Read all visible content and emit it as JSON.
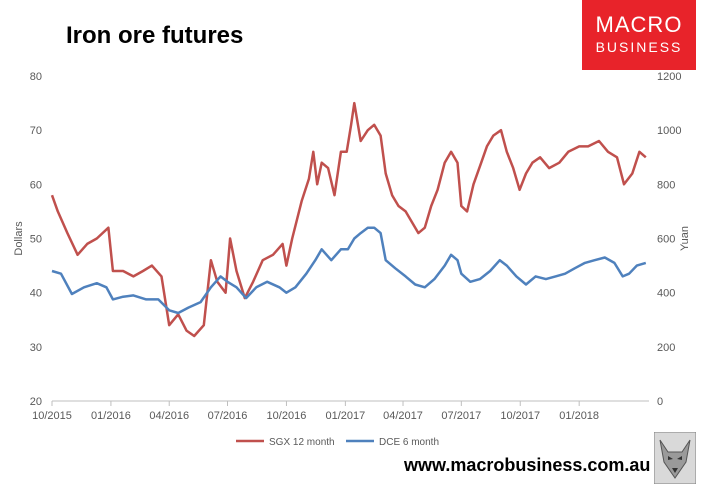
{
  "chart_data": {
    "type": "line",
    "title": "Iron ore futures",
    "x_ticks": [
      "10/2015",
      "01/2016",
      "04/2016",
      "07/2016",
      "10/2016",
      "01/2017",
      "04/2017",
      "07/2017",
      "10/2017",
      "01/2018"
    ],
    "ylabel": "Dollars",
    "y2label": "Yuan",
    "ylim": [
      20,
      80
    ],
    "y2lim": [
      0,
      1200
    ],
    "y_ticks": [
      20,
      30,
      40,
      50,
      60,
      70,
      80
    ],
    "y2_ticks": [
      0,
      200,
      400,
      600,
      800,
      1000,
      1200
    ],
    "grid": false,
    "legend_position": "bottom",
    "series": [
      {
        "name": "SGX 12 month",
        "axis": "left",
        "color": "#c0504d",
        "points": [
          [
            "2015-10-01",
            58
          ],
          [
            "2015-10-10",
            55
          ],
          [
            "2015-10-25",
            51
          ],
          [
            "2015-11-10",
            47
          ],
          [
            "2015-11-25",
            49
          ],
          [
            "2015-12-10",
            50
          ],
          [
            "2015-12-28",
            52
          ],
          [
            "2016-01-04",
            44
          ],
          [
            "2016-01-20",
            44
          ],
          [
            "2016-02-05",
            43
          ],
          [
            "2016-02-20",
            44
          ],
          [
            "2016-03-05",
            45
          ],
          [
            "2016-03-20",
            43
          ],
          [
            "2016-04-01",
            34
          ],
          [
            "2016-04-15",
            36
          ],
          [
            "2016-04-28",
            33
          ],
          [
            "2016-05-10",
            32
          ],
          [
            "2016-05-25",
            34
          ],
          [
            "2016-06-05",
            46
          ],
          [
            "2016-06-15",
            42
          ],
          [
            "2016-06-28",
            40
          ],
          [
            "2016-07-05",
            50
          ],
          [
            "2016-07-15",
            44
          ],
          [
            "2016-07-28",
            39
          ],
          [
            "2016-08-10",
            42
          ],
          [
            "2016-08-25",
            46
          ],
          [
            "2016-09-10",
            47
          ],
          [
            "2016-09-25",
            49
          ],
          [
            "2016-10-01",
            45
          ],
          [
            "2016-10-10",
            50
          ],
          [
            "2016-10-25",
            57
          ],
          [
            "2016-11-05",
            61
          ],
          [
            "2016-11-12",
            66
          ],
          [
            "2016-11-18",
            60
          ],
          [
            "2016-11-25",
            64
          ],
          [
            "2016-12-05",
            63
          ],
          [
            "2016-12-15",
            58
          ],
          [
            "2016-12-25",
            66
          ],
          [
            "2017-01-03",
            66
          ],
          [
            "2017-01-10",
            71
          ],
          [
            "2017-01-15",
            75
          ],
          [
            "2017-01-25",
            68
          ],
          [
            "2017-02-05",
            70
          ],
          [
            "2017-02-15",
            71
          ],
          [
            "2017-02-25",
            69
          ],
          [
            "2017-03-05",
            62
          ],
          [
            "2017-03-15",
            58
          ],
          [
            "2017-03-25",
            56
          ],
          [
            "2017-04-05",
            55
          ],
          [
            "2017-04-15",
            53
          ],
          [
            "2017-04-25",
            51
          ],
          [
            "2017-05-05",
            52
          ],
          [
            "2017-05-15",
            56
          ],
          [
            "2017-05-25",
            59
          ],
          [
            "2017-06-05",
            64
          ],
          [
            "2017-06-15",
            66
          ],
          [
            "2017-06-25",
            64
          ],
          [
            "2017-07-01",
            56
          ],
          [
            "2017-07-10",
            55
          ],
          [
            "2017-07-20",
            60
          ],
          [
            "2017-08-01",
            64
          ],
          [
            "2017-08-10",
            67
          ],
          [
            "2017-08-20",
            69
          ],
          [
            "2017-09-01",
            70
          ],
          [
            "2017-09-10",
            66
          ],
          [
            "2017-09-20",
            63
          ],
          [
            "2017-09-30",
            59
          ],
          [
            "2017-10-10",
            62
          ],
          [
            "2017-10-20",
            64
          ],
          [
            "2017-11-01",
            65
          ],
          [
            "2017-11-15",
            63
          ],
          [
            "2017-12-01",
            64
          ],
          [
            "2017-12-15",
            66
          ],
          [
            "2018-01-01",
            67
          ],
          [
            "2018-01-15",
            67
          ],
          [
            "2018-02-01",
            68
          ],
          [
            "2018-02-15",
            66
          ],
          [
            "2018-03-01",
            65
          ],
          [
            "2018-03-12",
            60
          ],
          [
            "2018-03-25",
            62
          ],
          [
            "2018-04-05",
            66
          ],
          [
            "2018-04-15",
            65
          ]
        ]
      },
      {
        "name": "DCE 6 month",
        "axis": "right",
        "color": "#4f81bd",
        "points": [
          [
            "2015-10-01",
            480
          ],
          [
            "2015-10-15",
            470
          ],
          [
            "2015-11-01",
            395
          ],
          [
            "2015-11-20",
            420
          ],
          [
            "2015-12-10",
            435
          ],
          [
            "2015-12-25",
            420
          ],
          [
            "2016-01-04",
            375
          ],
          [
            "2016-01-20",
            385
          ],
          [
            "2016-02-05",
            390
          ],
          [
            "2016-02-25",
            375
          ],
          [
            "2016-03-15",
            375
          ],
          [
            "2016-04-01",
            335
          ],
          [
            "2016-04-15",
            325
          ],
          [
            "2016-05-01",
            345
          ],
          [
            "2016-05-20",
            365
          ],
          [
            "2016-06-05",
            420
          ],
          [
            "2016-06-20",
            460
          ],
          [
            "2016-07-01",
            440
          ],
          [
            "2016-07-15",
            420
          ],
          [
            "2016-07-30",
            380
          ],
          [
            "2016-08-15",
            420
          ],
          [
            "2016-09-01",
            440
          ],
          [
            "2016-09-20",
            420
          ],
          [
            "2016-10-01",
            400
          ],
          [
            "2016-10-15",
            420
          ],
          [
            "2016-11-01",
            470
          ],
          [
            "2016-11-15",
            520
          ],
          [
            "2016-11-25",
            560
          ],
          [
            "2016-12-10",
            520
          ],
          [
            "2016-12-25",
            560
          ],
          [
            "2017-01-05",
            560
          ],
          [
            "2017-01-15",
            600
          ],
          [
            "2017-01-25",
            620
          ],
          [
            "2017-02-05",
            640
          ],
          [
            "2017-02-15",
            640
          ],
          [
            "2017-02-25",
            620
          ],
          [
            "2017-03-05",
            520
          ],
          [
            "2017-03-20",
            490
          ],
          [
            "2017-04-05",
            460
          ],
          [
            "2017-04-20",
            430
          ],
          [
            "2017-05-05",
            420
          ],
          [
            "2017-05-20",
            450
          ],
          [
            "2017-06-05",
            500
          ],
          [
            "2017-06-15",
            540
          ],
          [
            "2017-06-25",
            520
          ],
          [
            "2017-07-01",
            470
          ],
          [
            "2017-07-15",
            440
          ],
          [
            "2017-07-30",
            450
          ],
          [
            "2017-08-15",
            480
          ],
          [
            "2017-08-30",
            520
          ],
          [
            "2017-09-10",
            500
          ],
          [
            "2017-09-25",
            460
          ],
          [
            "2017-10-10",
            430
          ],
          [
            "2017-10-25",
            460
          ],
          [
            "2017-11-10",
            450
          ],
          [
            "2017-11-25",
            460
          ],
          [
            "2017-12-10",
            470
          ],
          [
            "2017-12-25",
            490
          ],
          [
            "2018-01-10",
            510
          ],
          [
            "2018-01-25",
            520
          ],
          [
            "2018-02-10",
            530
          ],
          [
            "2018-02-25",
            510
          ],
          [
            "2018-03-10",
            460
          ],
          [
            "2018-03-20",
            470
          ],
          [
            "2018-04-01",
            500
          ],
          [
            "2018-04-15",
            510
          ]
        ]
      }
    ]
  },
  "logo": {
    "line1": "MACRO",
    "line2": "BUSINESS",
    "color": "#e8232a"
  },
  "footer": {
    "url": "www.macrobusiness.com.au"
  }
}
